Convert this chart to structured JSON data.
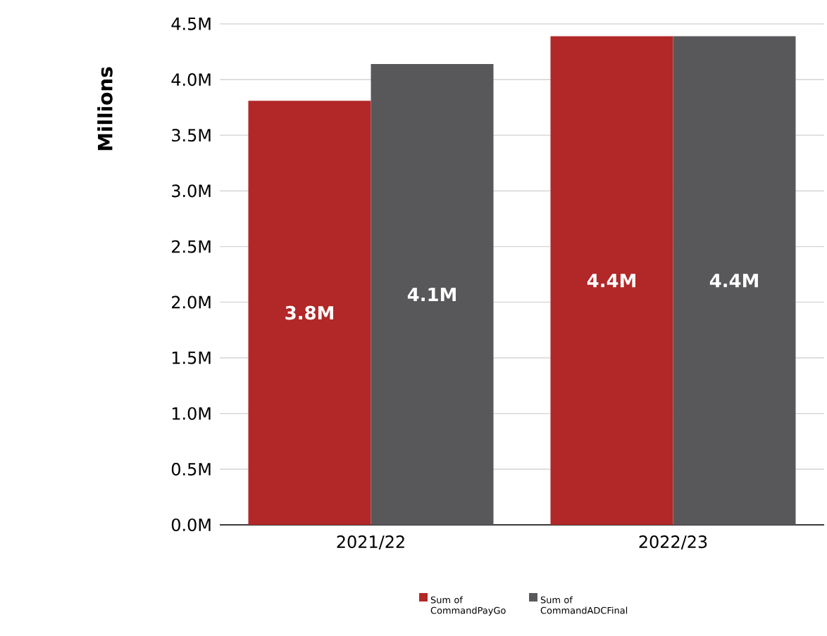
{
  "chart_data": {
    "type": "bar",
    "ylabel": "Millions",
    "categories": [
      "2021/22",
      "2022/23"
    ],
    "series": [
      {
        "name": "Sum of CommandPayGo",
        "color": "#b22727",
        "values": [
          3.81,
          4.39
        ],
        "value_labels": [
          "3.8M",
          "4.4M"
        ]
      },
      {
        "name": "Sum of CommandADCFinal",
        "color": "#58585a",
        "values": [
          4.14,
          4.39
        ],
        "value_labels": [
          "4.1M",
          "4.4M"
        ]
      }
    ],
    "ylim": [
      0,
      4.5
    ],
    "yticks": [
      {
        "value": 0,
        "label": "0.0M"
      },
      {
        "value": 0.5,
        "label": "0.5M"
      },
      {
        "value": 1,
        "label": "1.0M"
      },
      {
        "value": 1.5,
        "label": "1.5M"
      },
      {
        "value": 2,
        "label": "2.0M"
      },
      {
        "value": 2.5,
        "label": "2.5M"
      },
      {
        "value": 3,
        "label": "3.0M"
      },
      {
        "value": 3.5,
        "label": "3.5M"
      },
      {
        "value": 4,
        "label": "4.0M"
      },
      {
        "value": 4.5,
        "label": "4.5M"
      }
    ],
    "grid": "y",
    "legend": "bottom"
  }
}
